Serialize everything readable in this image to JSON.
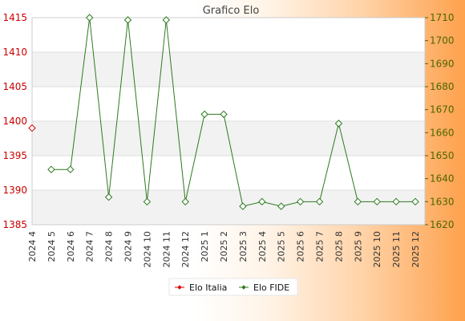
{
  "chart_data": {
    "type": "line",
    "title": "Grafico Elo",
    "categories": [
      "2024 4",
      "2024 5",
      "2024 6",
      "2024 7",
      "2024 8",
      "2024 9",
      "2024 10",
      "2024 11",
      "2024 12",
      "2025 1",
      "2025 2",
      "2025 3",
      "2025 4",
      "2025 5",
      "2025 6",
      "2025 7",
      "2025 8",
      "2025 9",
      "2025 10",
      "2025 11",
      "2025 12"
    ],
    "y_left": {
      "min": 1385,
      "max": 1415,
      "ticks": [
        1385,
        1390,
        1395,
        1400,
        1405,
        1410,
        1415
      ],
      "color": "#cc0000"
    },
    "y_right": {
      "min": 1620,
      "max": 1710,
      "ticks": [
        1620,
        1630,
        1640,
        1650,
        1660,
        1670,
        1680,
        1690,
        1700,
        1710
      ],
      "color": "#4d6600"
    },
    "series": [
      {
        "name": "Elo Italia",
        "axis": "left",
        "color": "#dd0000",
        "values": [
          1399,
          null,
          null,
          null,
          null,
          null,
          null,
          null,
          null,
          null,
          null,
          null,
          null,
          null,
          null,
          null,
          null,
          null,
          null,
          null,
          null
        ]
      },
      {
        "name": "Elo FIDE",
        "axis": "right",
        "color": "#2d7a1f",
        "values": [
          null,
          1644,
          1644,
          1710,
          1632,
          1709,
          1630,
          1709,
          1630,
          1668,
          1668,
          1628,
          1630,
          1628,
          1630,
          1630,
          1664,
          1630,
          1630,
          1630,
          1630
        ]
      }
    ],
    "grid": true,
    "legend_position": "bottom-center"
  }
}
